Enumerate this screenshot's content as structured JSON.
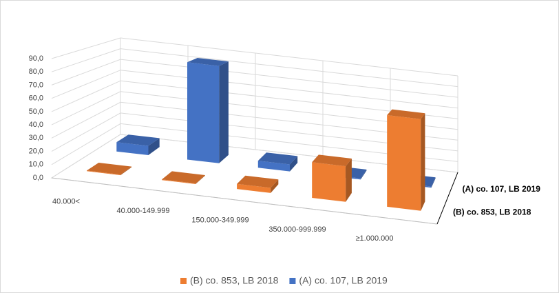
{
  "chart_data": {
    "type": "bar3d",
    "categories": [
      "40.000<",
      "40.000-149.999",
      "150.000-349.999",
      "350.000-999.999",
      "≥1.000.000"
    ],
    "series": [
      {
        "name": "(B) co. 853, LB 2018",
        "color": "#ed7d31",
        "values": [
          0.5,
          0.5,
          4,
          28,
          72
        ]
      },
      {
        "name": "(A) co. 107, LB 2019",
        "color": "#4472c4",
        "values": [
          8,
          84,
          6,
          1,
          1
        ]
      }
    ],
    "ylim": [
      0,
      90
    ],
    "yticks": [
      {
        "value": 0,
        "label": "0,0"
      },
      {
        "value": 10,
        "label": "10,0"
      },
      {
        "value": 20,
        "label": "20,0"
      },
      {
        "value": 30,
        "label": "30,0"
      },
      {
        "value": 40,
        "label": "40,0"
      },
      {
        "value": 50,
        "label": "50,0"
      },
      {
        "value": 60,
        "label": "60,0"
      },
      {
        "value": 70,
        "label": "70,0"
      },
      {
        "value": 80,
        "label": "80,0"
      },
      {
        "value": 90,
        "label": "90,0"
      }
    ],
    "grid": true,
    "legend": "bottom"
  }
}
